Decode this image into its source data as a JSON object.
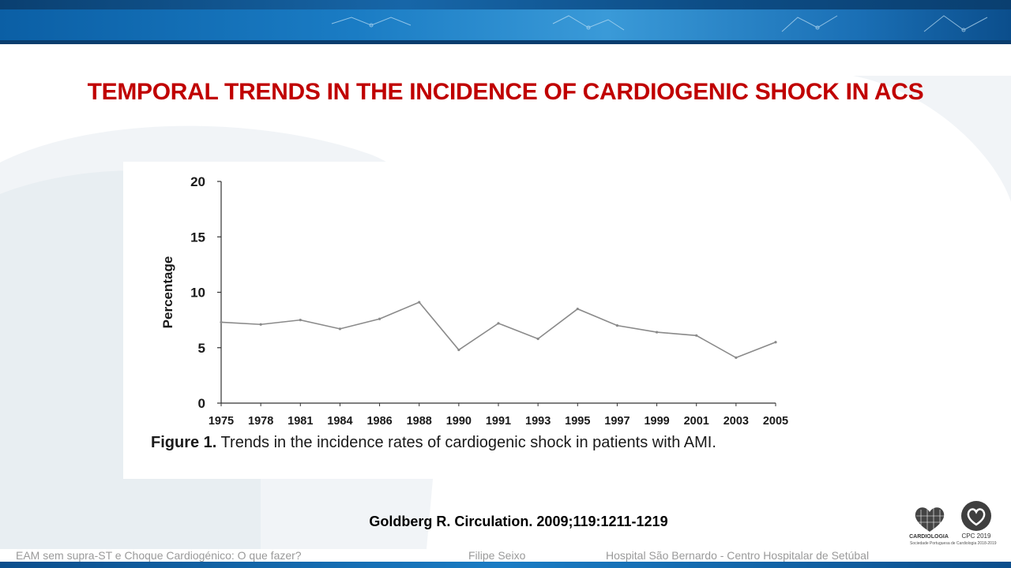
{
  "slide": {
    "title": "TEMPORAL TRENDS IN THE INCIDENCE OF CARDIOGENIC SHOCK IN ACS",
    "citation": "Goldberg R. Circulation. 2009;119:1211-1219",
    "accent_color": "#c00000"
  },
  "figure": {
    "caption_label": "Figure 1.",
    "caption_text": " Trends in the incidence rates of cardiogenic shock in patients with AMI."
  },
  "chart_data": {
    "type": "line",
    "title": "",
    "xlabel": "",
    "ylabel": "Percentage",
    "x": [
      "1975",
      "1978",
      "1981",
      "1984",
      "1986",
      "1988",
      "1990",
      "1991",
      "1993",
      "1995",
      "1997",
      "1999",
      "2001",
      "2003",
      "2005"
    ],
    "series": [
      {
        "values": [
          7.3,
          7.1,
          7.5,
          6.7,
          7.6,
          9.1,
          4.8,
          7.2,
          5.8,
          8.5,
          7.0,
          6.4,
          6.1,
          4.1,
          5.5
        ]
      }
    ],
    "yticks": [
      0,
      5,
      10,
      15,
      20
    ],
    "ylim": [
      0,
      20
    ],
    "grid": false,
    "line_color": "#8a8a8a"
  },
  "footer": {
    "left": "EAM sem supra-ST e Choque Cardiogénico: O que fazer?",
    "middle": "Filipe Seixo",
    "right": "Hospital São Bernardo  - Centro Hospitalar de Setúbal"
  },
  "logos": {
    "spc_small": "Sociedade Portuguesa de",
    "spc_name": "CARDIOLOGIA",
    "cpc": "CPC 2019",
    "spc_foot": "Sociedade Portuguesa de Cardiologia 2018-2019"
  }
}
